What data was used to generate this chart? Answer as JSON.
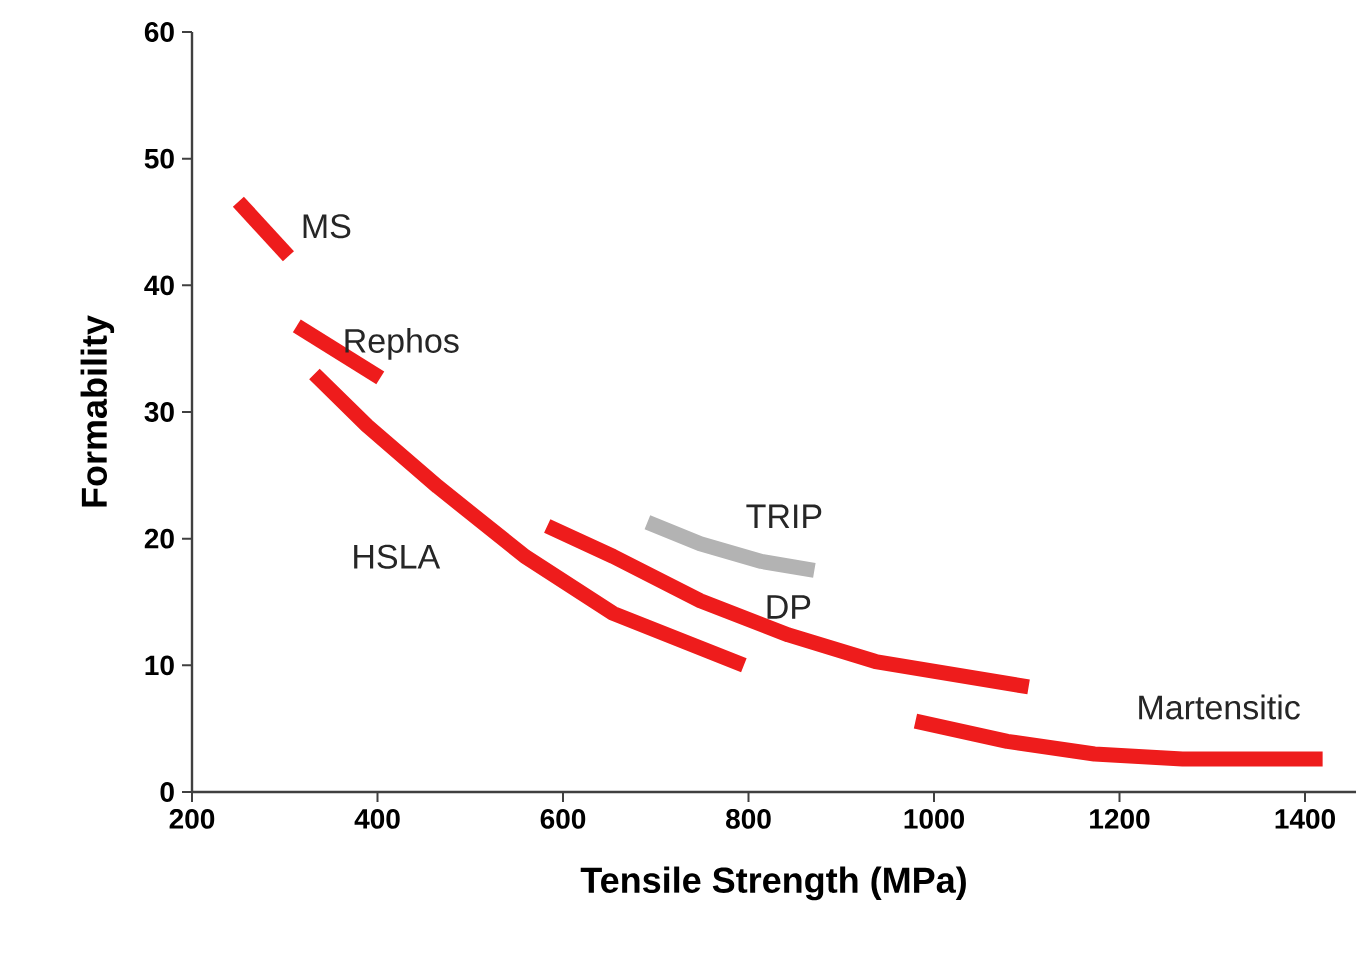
{
  "chart_data": {
    "type": "line",
    "xlabel": "Tensile Strength (MPa)",
    "ylabel": "Formability",
    "xlim": [
      200,
      1455
    ],
    "ylim": [
      0,
      60
    ],
    "xticks": [
      200,
      400,
      600,
      800,
      1000,
      1200,
      1400
    ],
    "yticks": [
      0,
      10,
      20,
      30,
      40,
      50,
      60
    ],
    "series": [
      {
        "name": "MS",
        "color": "#ee1c1c",
        "x": [
          250,
          304
        ],
        "values": [
          46.6,
          42.3
        ]
      },
      {
        "name": "Rephos",
        "color": "#ee1c1c",
        "x": [
          313,
          403
        ],
        "values": [
          36.8,
          32.7
        ]
      },
      {
        "name": "HSLA",
        "color": "#ee1c1c",
        "x": [
          332,
          389,
          465,
          559,
          654,
          795
        ],
        "values": [
          33,
          28.9,
          24.1,
          18.6,
          14.1,
          10
        ]
      },
      {
        "name": "DP",
        "color": "#ee1c1c",
        "x": [
          583,
          654,
          748,
          843,
          937,
          1102
        ],
        "values": [
          21,
          18.6,
          15.1,
          12.4,
          10.3,
          8.3
        ]
      },
      {
        "name": "TRIP",
        "color": "#b3b3b3",
        "x": [
          691,
          748,
          814,
          871
        ],
        "values": [
          21.3,
          19.6,
          18.2,
          17.5
        ]
      },
      {
        "name": "Martensitic",
        "color": "#ee1c1c",
        "x": [
          980,
          1079,
          1173,
          1268,
          1419
        ],
        "values": [
          5.6,
          4,
          3,
          2.6,
          2.6
        ]
      }
    ]
  }
}
